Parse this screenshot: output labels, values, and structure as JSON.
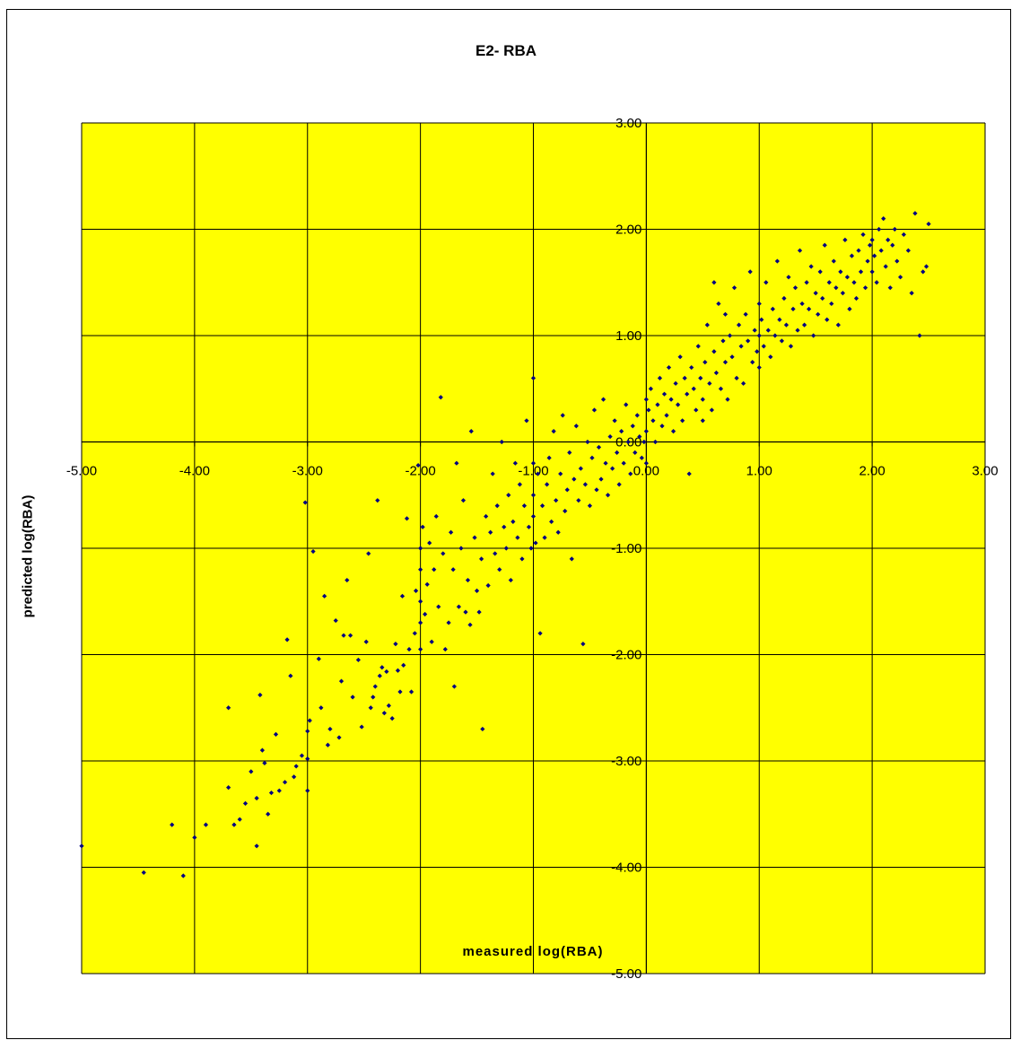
{
  "chart_data": {
    "type": "scatter",
    "title": "E2- RBA",
    "xlabel": "measured log(RBA)",
    "ylabel": "predicted log(RBA)",
    "xlim": [
      -5,
      3
    ],
    "ylim": [
      -5,
      3
    ],
    "grid": true,
    "background": "#FFFF00",
    "marker_color": "#000080",
    "x_ticks": [
      "-5.00",
      "-4.00",
      "-3.00",
      "-2.00",
      "-1.00",
      "0.00",
      "1.00",
      "2.00",
      "3.00"
    ],
    "y_ticks": [
      "-5.00",
      "-4.00",
      "-3.00",
      "-2.00",
      "-1.00",
      "0.00",
      "1.00",
      "2.00",
      "3.00"
    ],
    "series": [
      {
        "points": [
          [
            -5.0,
            -3.8
          ],
          [
            -4.45,
            -4.05
          ],
          [
            -4.2,
            -3.6
          ],
          [
            -4.1,
            -4.08
          ],
          [
            -4.0,
            -3.72
          ],
          [
            -3.9,
            -3.6
          ],
          [
            -3.7,
            -3.25
          ],
          [
            -3.7,
            -2.5
          ],
          [
            -3.65,
            -3.6
          ],
          [
            -3.6,
            -3.55
          ],
          [
            -3.55,
            -3.4
          ],
          [
            -3.5,
            -3.1
          ],
          [
            -3.45,
            -3.8
          ],
          [
            -3.45,
            -3.35
          ],
          [
            -3.42,
            -2.38
          ],
          [
            -3.4,
            -2.9
          ],
          [
            -3.38,
            -3.02
          ],
          [
            -3.35,
            -3.5
          ],
          [
            -3.32,
            -3.3
          ],
          [
            -3.28,
            -2.75
          ],
          [
            -3.25,
            -3.28
          ],
          [
            -3.2,
            -3.2
          ],
          [
            -3.18,
            -1.86
          ],
          [
            -3.15,
            -2.2
          ],
          [
            -3.12,
            -3.15
          ],
          [
            -3.1,
            -3.05
          ],
          [
            -3.05,
            -2.95
          ],
          [
            -3.02,
            -0.57
          ],
          [
            -3.0,
            -3.28
          ],
          [
            -3.0,
            -2.98
          ],
          [
            -3.0,
            -2.72
          ],
          [
            -2.98,
            -2.62
          ],
          [
            -2.95,
            -1.03
          ],
          [
            -2.9,
            -2.04
          ],
          [
            -2.88,
            -2.5
          ],
          [
            -2.85,
            -1.45
          ],
          [
            -2.82,
            -2.85
          ],
          [
            -2.8,
            -2.7
          ],
          [
            -2.75,
            -1.68
          ],
          [
            -2.72,
            -2.78
          ],
          [
            -2.7,
            -2.25
          ],
          [
            -2.68,
            -1.82
          ],
          [
            -2.65,
            -1.3
          ],
          [
            -2.62,
            -1.82
          ],
          [
            -2.6,
            -2.4
          ],
          [
            -2.55,
            -2.05
          ],
          [
            -2.52,
            -2.68
          ],
          [
            -2.48,
            -1.88
          ],
          [
            -2.46,
            -1.05
          ],
          [
            -2.44,
            -2.5
          ],
          [
            -2.42,
            -2.4
          ],
          [
            -2.4,
            -2.3
          ],
          [
            -2.38,
            -0.55
          ],
          [
            -2.36,
            -2.2
          ],
          [
            -2.34,
            -2.12
          ],
          [
            -2.32,
            -2.55
          ],
          [
            -2.3,
            -2.16
          ],
          [
            -2.28,
            -2.48
          ],
          [
            -2.25,
            -2.6
          ],
          [
            -2.22,
            -1.9
          ],
          [
            -2.2,
            -2.15
          ],
          [
            -2.18,
            -2.35
          ],
          [
            -2.16,
            -1.45
          ],
          [
            -2.15,
            -2.1
          ],
          [
            -2.12,
            -0.72
          ],
          [
            -2.1,
            -1.95
          ],
          [
            -2.08,
            -2.35
          ],
          [
            -2.05,
            -1.8
          ],
          [
            -2.04,
            -1.4
          ],
          [
            -2.02,
            -0.22
          ],
          [
            -2.0,
            -1.95
          ],
          [
            -2.0,
            -1.7
          ],
          [
            -2.0,
            -1.5
          ],
          [
            -2.0,
            -1.2
          ],
          [
            -2.0,
            -1.0
          ],
          [
            -1.98,
            -0.8
          ],
          [
            -1.96,
            -1.62
          ],
          [
            -1.94,
            -1.34
          ],
          [
            -1.92,
            -0.95
          ],
          [
            -1.9,
            -1.88
          ],
          [
            -1.88,
            -1.2
          ],
          [
            -1.86,
            -0.7
          ],
          [
            -1.84,
            -1.55
          ],
          [
            -1.82,
            0.42
          ],
          [
            -1.8,
            -1.05
          ],
          [
            -1.78,
            -1.95
          ],
          [
            -1.75,
            -1.7
          ],
          [
            -1.73,
            -0.85
          ],
          [
            -1.71,
            -1.2
          ],
          [
            -1.7,
            -2.3
          ],
          [
            -1.68,
            -0.2
          ],
          [
            -1.66,
            -1.55
          ],
          [
            -1.64,
            -1.0
          ],
          [
            -1.62,
            -0.55
          ],
          [
            -1.6,
            -1.6
          ],
          [
            -1.58,
            -1.3
          ],
          [
            -1.56,
            -1.72
          ],
          [
            -1.55,
            0.1
          ],
          [
            -1.52,
            -0.9
          ],
          [
            -1.5,
            -1.4
          ],
          [
            -1.48,
            -1.6
          ],
          [
            -1.46,
            -1.1
          ],
          [
            -1.45,
            -2.7
          ],
          [
            -1.42,
            -0.7
          ],
          [
            -1.4,
            -1.35
          ],
          [
            -1.38,
            -0.85
          ],
          [
            -1.36,
            -0.3
          ],
          [
            -1.34,
            -1.05
          ],
          [
            -1.32,
            -0.6
          ],
          [
            -1.3,
            -1.2
          ],
          [
            -1.28,
            0.0
          ],
          [
            -1.26,
            -0.8
          ],
          [
            -1.24,
            -1.0
          ],
          [
            -1.22,
            -0.5
          ],
          [
            -1.2,
            -1.3
          ],
          [
            -1.18,
            -0.75
          ],
          [
            -1.16,
            -0.2
          ],
          [
            -1.14,
            -0.9
          ],
          [
            -1.12,
            -0.4
          ],
          [
            -1.1,
            -1.1
          ],
          [
            -1.08,
            -0.6
          ],
          [
            -1.06,
            0.2
          ],
          [
            -1.04,
            -0.8
          ],
          [
            -1.02,
            -1.0
          ],
          [
            -1.0,
            -0.5
          ],
          [
            -1.0,
            -0.2
          ],
          [
            -1.0,
            -0.7
          ],
          [
            -1.0,
            0.6
          ],
          [
            -0.98,
            -0.95
          ],
          [
            -0.96,
            -0.3
          ],
          [
            -0.94,
            -1.8
          ],
          [
            -0.92,
            -0.6
          ],
          [
            -0.9,
            -0.9
          ],
          [
            -0.88,
            -0.4
          ],
          [
            -0.86,
            -0.15
          ],
          [
            -0.84,
            -0.75
          ],
          [
            -0.82,
            0.1
          ],
          [
            -0.8,
            -0.55
          ],
          [
            -0.78,
            -0.85
          ],
          [
            -0.76,
            -0.3
          ],
          [
            -0.74,
            0.25
          ],
          [
            -0.72,
            -0.65
          ],
          [
            -0.7,
            -0.45
          ],
          [
            -0.68,
            -0.1
          ],
          [
            -0.66,
            -1.1
          ],
          [
            -0.64,
            -0.35
          ],
          [
            -0.62,
            0.15
          ],
          [
            -0.6,
            -0.55
          ],
          [
            -0.58,
            -0.25
          ],
          [
            -0.56,
            -1.9
          ],
          [
            -0.54,
            -0.4
          ],
          [
            -0.52,
            0.0
          ],
          [
            -0.5,
            -0.6
          ],
          [
            -0.48,
            -0.15
          ],
          [
            -0.46,
            0.3
          ],
          [
            -0.44,
            -0.45
          ],
          [
            -0.42,
            -0.05
          ],
          [
            -0.4,
            -0.35
          ],
          [
            -0.38,
            0.4
          ],
          [
            -0.36,
            -0.2
          ],
          [
            -0.34,
            -0.5
          ],
          [
            -0.32,
            0.05
          ],
          [
            -0.3,
            -0.25
          ],
          [
            -0.28,
            0.2
          ],
          [
            -0.26,
            -0.1
          ],
          [
            -0.24,
            -0.4
          ],
          [
            -0.22,
            0.1
          ],
          [
            -0.2,
            -0.2
          ],
          [
            -0.18,
            0.35
          ],
          [
            -0.16,
            0.0
          ],
          [
            -0.14,
            -0.3
          ],
          [
            -0.12,
            0.15
          ],
          [
            -0.1,
            -0.1
          ],
          [
            -0.08,
            0.25
          ],
          [
            -0.06,
            0.05
          ],
          [
            -0.04,
            -0.15
          ],
          [
            -0.02,
            0.0
          ],
          [
            0.0,
            0.1
          ],
          [
            0.0,
            -0.2
          ],
          [
            0.0,
            0.4
          ],
          [
            0.02,
            0.3
          ],
          [
            0.04,
            0.5
          ],
          [
            0.06,
            0.2
          ],
          [
            0.08,
            0.0
          ],
          [
            0.1,
            0.35
          ],
          [
            0.12,
            0.6
          ],
          [
            0.14,
            0.15
          ],
          [
            0.16,
            0.45
          ],
          [
            0.18,
            0.25
          ],
          [
            0.2,
            0.7
          ],
          [
            0.22,
            0.4
          ],
          [
            0.24,
            0.1
          ],
          [
            0.26,
            0.55
          ],
          [
            0.28,
            0.35
          ],
          [
            0.3,
            0.8
          ],
          [
            0.32,
            0.2
          ],
          [
            0.34,
            0.6
          ],
          [
            0.36,
            0.45
          ],
          [
            0.38,
            -0.3
          ],
          [
            0.4,
            0.7
          ],
          [
            0.42,
            0.5
          ],
          [
            0.44,
            0.3
          ],
          [
            0.46,
            0.9
          ],
          [
            0.48,
            0.6
          ],
          [
            0.5,
            0.4
          ],
          [
            0.52,
            0.75
          ],
          [
            0.54,
            1.1
          ],
          [
            0.56,
            0.55
          ],
          [
            0.58,
            0.3
          ],
          [
            0.6,
            0.85
          ],
          [
            0.62,
            0.65
          ],
          [
            0.64,
            1.3
          ],
          [
            0.66,
            0.5
          ],
          [
            0.68,
            0.95
          ],
          [
            0.7,
            0.75
          ],
          [
            0.72,
            0.4
          ],
          [
            0.74,
            1.0
          ],
          [
            0.76,
            0.8
          ],
          [
            0.78,
            1.45
          ],
          [
            0.8,
            0.6
          ],
          [
            0.82,
            1.1
          ],
          [
            0.84,
            0.9
          ],
          [
            0.86,
            0.55
          ],
          [
            0.88,
            1.2
          ],
          [
            0.9,
            0.95
          ],
          [
            0.92,
            1.6
          ],
          [
            0.94,
            0.75
          ],
          [
            0.96,
            1.05
          ],
          [
            0.98,
            0.85
          ],
          [
            1.0,
            1.0
          ],
          [
            1.0,
            1.3
          ],
          [
            1.0,
            0.7
          ],
          [
            1.02,
            1.15
          ],
          [
            1.04,
            0.9
          ],
          [
            1.06,
            1.5
          ],
          [
            1.08,
            1.05
          ],
          [
            1.1,
            0.8
          ],
          [
            1.12,
            1.25
          ],
          [
            1.14,
            1.0
          ],
          [
            1.16,
            1.7
          ],
          [
            1.18,
            1.15
          ],
          [
            1.2,
            0.95
          ],
          [
            1.22,
            1.35
          ],
          [
            1.24,
            1.1
          ],
          [
            1.26,
            1.55
          ],
          [
            1.28,
            0.9
          ],
          [
            1.3,
            1.25
          ],
          [
            1.32,
            1.45
          ],
          [
            1.34,
            1.05
          ],
          [
            1.36,
            1.8
          ],
          [
            1.38,
            1.3
          ],
          [
            1.4,
            1.1
          ],
          [
            1.42,
            1.5
          ],
          [
            1.44,
            1.25
          ],
          [
            1.46,
            1.65
          ],
          [
            1.48,
            1.0
          ],
          [
            1.5,
            1.4
          ],
          [
            1.52,
            1.2
          ],
          [
            1.54,
            1.6
          ],
          [
            1.56,
            1.35
          ],
          [
            1.58,
            1.85
          ],
          [
            1.6,
            1.15
          ],
          [
            1.62,
            1.5
          ],
          [
            1.64,
            1.3
          ],
          [
            1.66,
            1.7
          ],
          [
            1.68,
            1.45
          ],
          [
            1.7,
            1.1
          ],
          [
            1.72,
            1.6
          ],
          [
            1.74,
            1.4
          ],
          [
            1.76,
            1.9
          ],
          [
            1.78,
            1.55
          ],
          [
            1.8,
            1.25
          ],
          [
            1.82,
            1.75
          ],
          [
            1.84,
            1.5
          ],
          [
            1.86,
            1.35
          ],
          [
            1.88,
            1.8
          ],
          [
            1.9,
            1.6
          ],
          [
            1.92,
            1.95
          ],
          [
            1.94,
            1.45
          ],
          [
            1.96,
            1.7
          ],
          [
            1.98,
            1.85
          ],
          [
            2.0,
            1.6
          ],
          [
            2.0,
            1.9
          ],
          [
            2.02,
            1.75
          ],
          [
            2.04,
            1.5
          ],
          [
            2.06,
            2.0
          ],
          [
            2.08,
            1.8
          ],
          [
            2.1,
            2.1
          ],
          [
            2.12,
            1.65
          ],
          [
            2.14,
            1.9
          ],
          [
            2.16,
            1.45
          ],
          [
            2.18,
            1.85
          ],
          [
            2.2,
            2.0
          ],
          [
            2.22,
            1.7
          ],
          [
            2.25,
            1.55
          ],
          [
            2.28,
            1.95
          ],
          [
            2.32,
            1.8
          ],
          [
            2.35,
            1.4
          ],
          [
            2.38,
            2.15
          ],
          [
            2.42,
            1.0
          ],
          [
            2.45,
            1.6
          ],
          [
            2.48,
            1.65
          ],
          [
            2.5,
            2.05
          ],
          [
            0.5,
            0.2
          ],
          [
            0.6,
            1.5
          ],
          [
            0.7,
            1.2
          ]
        ]
      }
    ]
  }
}
